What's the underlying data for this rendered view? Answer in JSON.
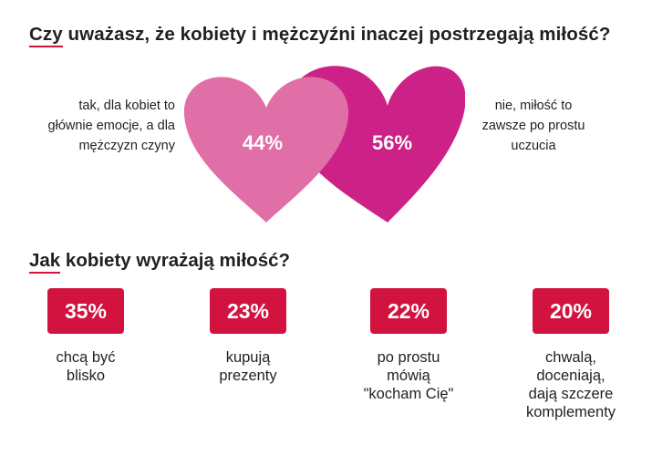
{
  "question1": {
    "title_first": "Czy",
    "title_rest": " uważasz, że kobiety i mężczyźni inaczej postrzegają miłość?",
    "left_label_lines": [
      "tak, dla kobiet to",
      "głównie emocje, a dla",
      "mężczyzn czyny"
    ],
    "right_label_lines": [
      "nie, miłość to",
      "zawsze po prostu",
      "uczucia"
    ]
  },
  "question2": {
    "title_first": "Jak",
    "title_rest": " kobiety wyrażają miłość?"
  },
  "colors": {
    "accent_red": "#d2123f",
    "heart_light": "#e06fa8",
    "heart_dark": "#cc2287",
    "text": "#231f20"
  },
  "chart_data": [
    {
      "type": "pie",
      "title": "Czy uważasz, że kobiety i mężczyźni inaczej postrzegają miłość?",
      "categories": [
        "tak, dla kobiet to głównie emocje, a dla mężczyzn czyny",
        "nie, miłość to zawsze po prostu uczucia"
      ],
      "values": [
        44,
        56
      ],
      "value_labels": [
        "44%",
        "56%"
      ]
    },
    {
      "type": "bar",
      "title": "Jak kobiety wyrażają miłość?",
      "categories": [
        "chcą być blisko",
        "kupują prezenty",
        "po prostu mówią \"kocham Cię\"",
        "chwalą, doceniają, dają szczere komplementy"
      ],
      "values": [
        35,
        23,
        22,
        20
      ],
      "value_labels": [
        "35%",
        "23%",
        "22%",
        "20%"
      ],
      "label_lines": [
        [
          "chcą być",
          "blisko"
        ],
        [
          "kupują",
          "prezenty"
        ],
        [
          "po prostu",
          "mówią",
          "\"kocham Cię\""
        ],
        [
          "chwalą,",
          "doceniają,",
          "dają szczere",
          "komplementy"
        ]
      ]
    }
  ]
}
